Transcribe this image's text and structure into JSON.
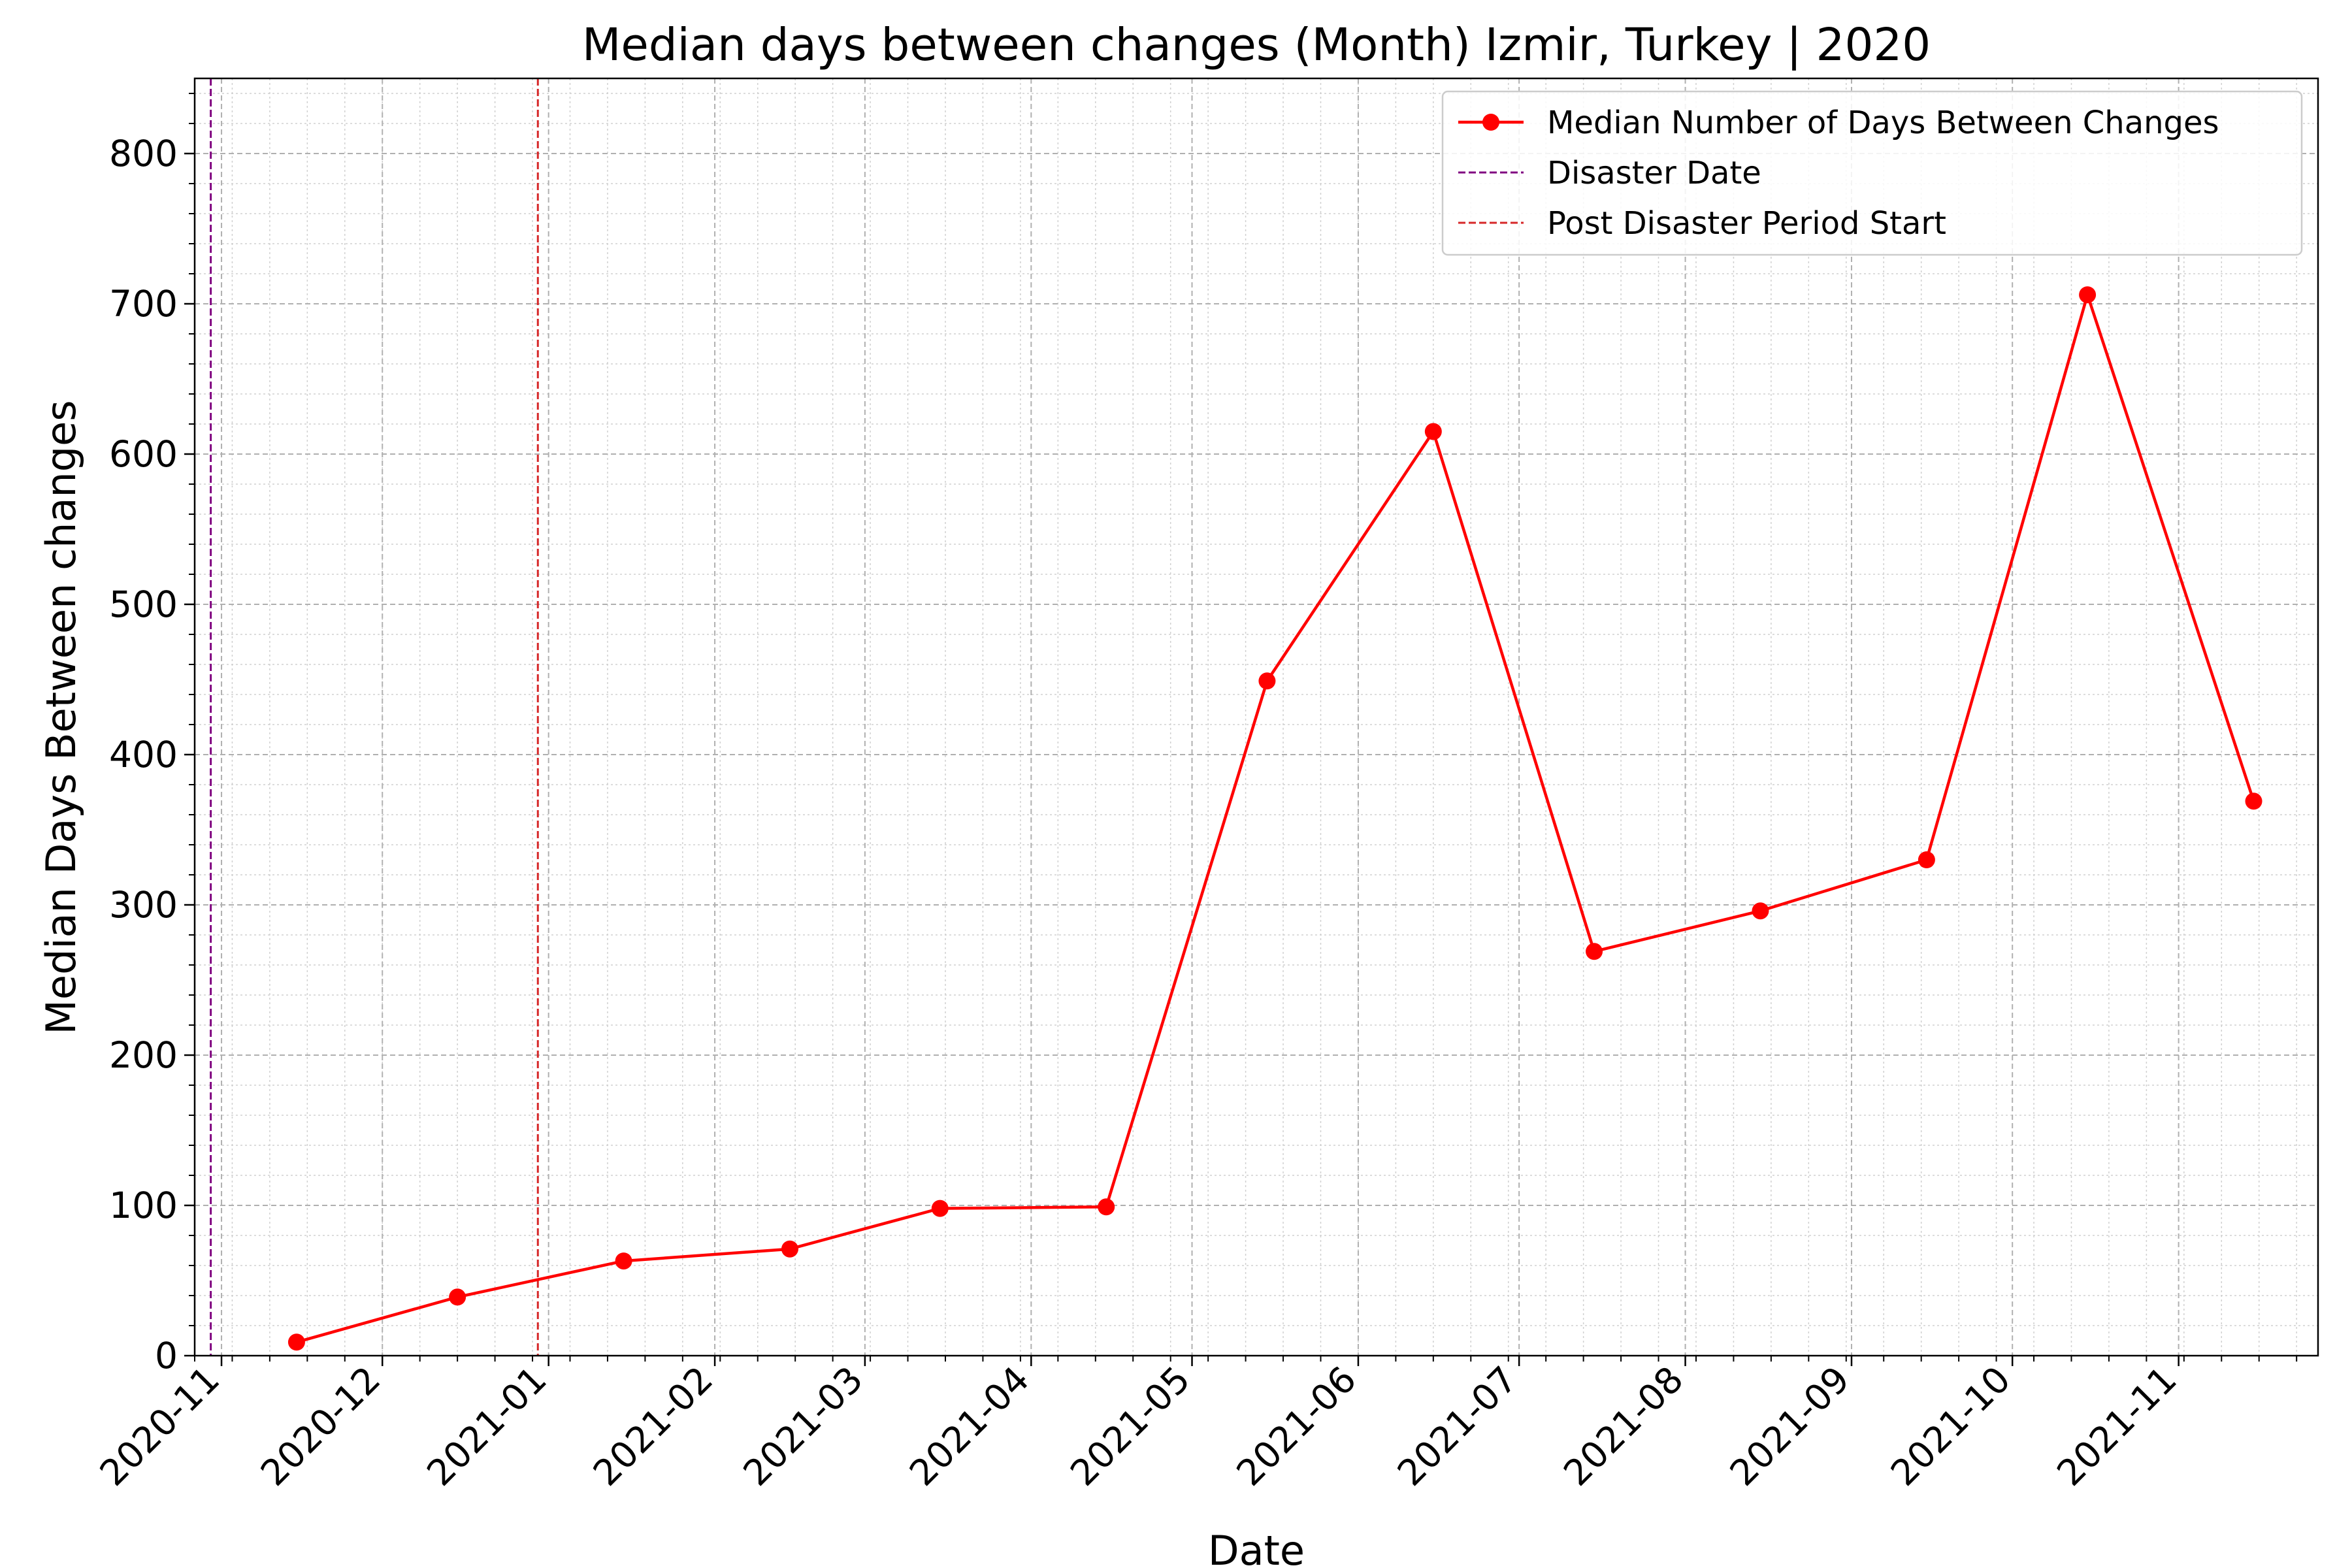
{
  "chart_data": {
    "type": "line",
    "title": "Median days between changes (Month) Izmir, Turkey | 2020",
    "xlabel": "Date",
    "ylabel": "Median Days Between changes",
    "x_tick_labels": [
      "2020-11",
      "2020-12",
      "2021-01",
      "2021-02",
      "2021-03",
      "2021-04",
      "2021-05",
      "2021-06",
      "2021-07",
      "2021-08",
      "2021-09",
      "2021-10",
      "2021-11"
    ],
    "y_ticks": [
      0,
      100,
      200,
      300,
      400,
      500,
      600,
      700,
      800
    ],
    "ylim": [
      0,
      850
    ],
    "xlim": [
      "2020-10-27",
      "2021-11-27"
    ],
    "grid": true,
    "legend_position": "top-right",
    "series": [
      {
        "name": "Median Number of Days Between Changes",
        "color": "#ff0000",
        "marker": "circle",
        "x": [
          "2020-11-15",
          "2020-12-15",
          "2021-01-15",
          "2021-02-15",
          "2021-03-15",
          "2021-04-15",
          "2021-05-15",
          "2021-06-15",
          "2021-07-15",
          "2021-08-15",
          "2021-09-15",
          "2021-10-15",
          "2021-11-15"
        ],
        "values": [
          9,
          39,
          63,
          71,
          98,
          99,
          449,
          615,
          269,
          296,
          330,
          706,
          369
        ]
      }
    ],
    "vlines": [
      {
        "name": "Disaster Date",
        "date": "2020-10-30",
        "color": "#800080",
        "style": "dashed"
      },
      {
        "name": "Post Disaster Period Start",
        "date": "2020-12-30",
        "color": "#d62728",
        "style": "dashed"
      }
    ]
  }
}
